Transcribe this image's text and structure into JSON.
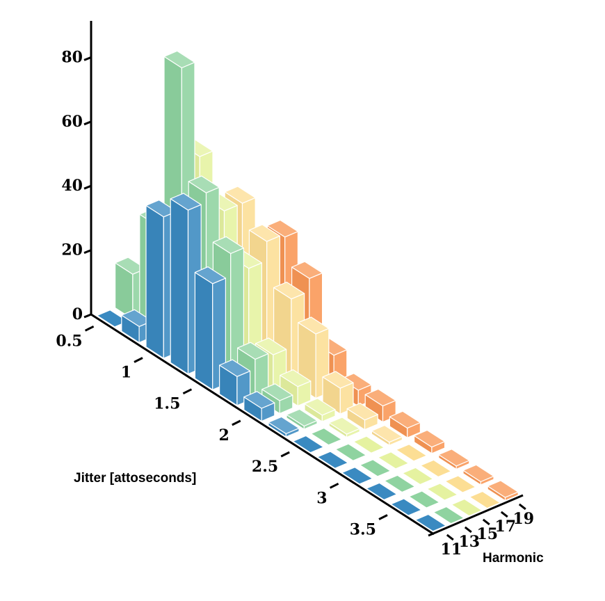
{
  "chart_data": {
    "type": "bar3d",
    "xlabel": "Jitter [attoseconds]",
    "ylabel": "Harmonic",
    "zlabel": "",
    "x_tick_labels": [
      "0.5",
      "1",
      "1.5",
      "2",
      "2.5",
      "3",
      "3.5"
    ],
    "y_tick_labels": [
      "11",
      "13",
      "15",
      "17",
      "19"
    ],
    "z_tick_labels": [
      "0",
      "20",
      "40",
      "60",
      "80"
    ],
    "zlim": [
      0,
      90
    ],
    "x_bins": [
      0.25,
      0.5,
      0.75,
      1.0,
      1.25,
      1.5,
      1.75,
      2.0,
      2.25,
      2.5,
      2.75,
      3.0,
      3.25,
      3.5
    ],
    "series": [
      {
        "name": "11",
        "color": "#3A8AC1",
        "values": [
          0,
          5,
          44,
          51,
          33,
          9,
          4,
          1,
          0,
          0,
          0,
          0,
          0,
          0
        ]
      },
      {
        "name": "13",
        "color": "#8FD3A0",
        "values": [
          14,
          34,
          88,
          54,
          40,
          12,
          4,
          1,
          0,
          0,
          0,
          0,
          0,
          0
        ]
      },
      {
        "name": "15",
        "color": "#E5F2A0",
        "values": [
          0,
          0,
          58,
          46,
          33,
          11,
          6,
          2,
          1,
          0,
          0,
          0,
          0,
          0
        ]
      },
      {
        "name": "17",
        "color": "#FCDE94",
        "values": [
          0,
          0,
          0,
          46,
          39,
          26,
          20,
          8,
          3,
          1,
          0,
          0,
          0,
          0
        ]
      },
      {
        "name": "19",
        "color": "#F99755",
        "values": [
          0,
          0,
          0,
          29,
          38,
          30,
          11,
          5,
          5,
          3,
          2,
          1,
          1,
          1
        ]
      }
    ]
  }
}
